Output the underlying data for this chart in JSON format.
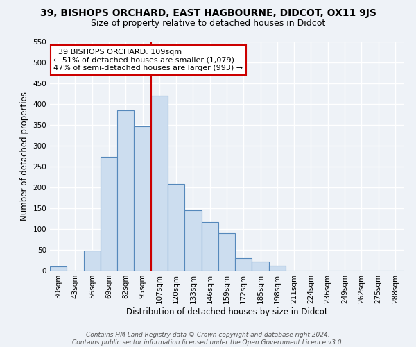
{
  "title": "39, BISHOPS ORCHARD, EAST HAGBOURNE, DIDCOT, OX11 9JS",
  "subtitle": "Size of property relative to detached houses in Didcot",
  "xlabel": "Distribution of detached houses by size in Didcot",
  "ylabel": "Number of detached properties",
  "categories": [
    "30sqm",
    "43sqm",
    "56sqm",
    "69sqm",
    "82sqm",
    "95sqm",
    "107sqm",
    "120sqm",
    "133sqm",
    "146sqm",
    "159sqm",
    "172sqm",
    "185sqm",
    "198sqm",
    "211sqm",
    "224sqm",
    "236sqm",
    "249sqm",
    "262sqm",
    "275sqm",
    "288sqm"
  ],
  "values": [
    10,
    0,
    48,
    273,
    385,
    347,
    420,
    208,
    145,
    117,
    90,
    30,
    22,
    11,
    0,
    0,
    0,
    0,
    0,
    0,
    0
  ],
  "bar_color": "#ccddef",
  "bar_edge_color": "#5588bb",
  "annotation_text": "  39 BISHOPS ORCHARD: 109sqm  \n← 51% of detached houses are smaller (1,079)\n47% of semi-detached houses are larger (993) →",
  "annotation_box_color": "#ffffff",
  "annotation_box_edge_color": "#cc0000",
  "ylim": [
    0,
    550
  ],
  "yticks": [
    0,
    50,
    100,
    150,
    200,
    250,
    300,
    350,
    400,
    450,
    500,
    550
  ],
  "footer_line1": "Contains HM Land Registry data © Crown copyright and database right 2024.",
  "footer_line2": "Contains public sector information licensed under the Open Government Licence v3.0.",
  "bg_color": "#eef2f7",
  "plot_bg_color": "#eef2f7",
  "grid_color": "#ffffff",
  "title_fontsize": 10,
  "subtitle_fontsize": 9,
  "axis_label_fontsize": 8.5,
  "tick_fontsize": 7.5,
  "annotation_fontsize": 8,
  "footer_fontsize": 6.5,
  "red_line_x": 6
}
